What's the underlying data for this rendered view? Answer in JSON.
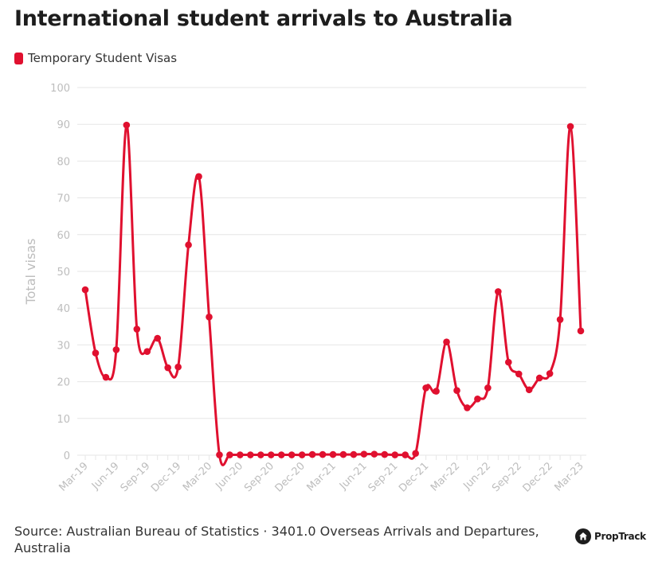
{
  "header": {
    "title": "International student arrivals to Australia"
  },
  "footer": {
    "source": "Source: Australian Bureau of Statistics · 3401.0 Overseas Arrivals and Departures, Australia",
    "brand": "PropTrack"
  },
  "colors": {
    "series": "#e0102f",
    "grid": "#e6e6e6",
    "axis_text": "#bdbdbd"
  },
  "chart_data": {
    "type": "line",
    "title": "International student arrivals to Australia",
    "xlabel": "",
    "ylabel": "Total visas",
    "ylim": [
      0,
      100
    ],
    "yticks": [
      0,
      10,
      20,
      30,
      40,
      50,
      60,
      70,
      80,
      90,
      100
    ],
    "legend_position": "top-left",
    "grid": true,
    "x": [
      "Mar-19",
      "Apr-19",
      "May-19",
      "Jun-19",
      "Jul-19",
      "Aug-19",
      "Sep-19",
      "Oct-19",
      "Nov-19",
      "Dec-19",
      "Jan-20",
      "Feb-20",
      "Mar-20",
      "Apr-20",
      "May-20",
      "Jun-20",
      "Jul-20",
      "Aug-20",
      "Sep-20",
      "Oct-20",
      "Nov-20",
      "Dec-20",
      "Jan-21",
      "Feb-21",
      "Mar-21",
      "Apr-21",
      "May-21",
      "Jun-21",
      "Jul-21",
      "Aug-21",
      "Sep-21",
      "Oct-21",
      "Nov-21",
      "Dec-21",
      "Jan-22",
      "Feb-22",
      "Mar-22",
      "Apr-22",
      "May-22",
      "Jun-22",
      "Jul-22",
      "Aug-22",
      "Sep-22",
      "Oct-22",
      "Nov-22",
      "Dec-22",
      "Jan-23",
      "Feb-23",
      "Mar-23"
    ],
    "x_tick_labels": [
      "Mar-19",
      "Jun-19",
      "Sep-19",
      "Dec-19",
      "Mar-20",
      "Jun-20",
      "Sep-20",
      "Dec-20",
      "Mar-21",
      "Jun-21",
      "Sep-21",
      "Dec-21",
      "Mar-22",
      "Jun-22",
      "Sep-22",
      "Dec-22",
      "Mar-23"
    ],
    "series": [
      {
        "name": "Temporary Student Visas",
        "values": [
          45,
          27.8,
          21.2,
          28.7,
          89.8,
          34.3,
          28.2,
          31.8,
          23.8,
          24,
          57.2,
          75.8,
          37.6,
          0.1,
          0.1,
          0.1,
          0.1,
          0.1,
          0.1,
          0.1,
          0.1,
          0.1,
          0.2,
          0.2,
          0.2,
          0.2,
          0.2,
          0.3,
          0.3,
          0.2,
          0.1,
          0.1,
          0.5,
          18.3,
          17.4,
          30.8,
          17.6,
          12.9,
          15.3,
          18.3,
          44.5,
          25.3,
          22.1,
          17.8,
          21,
          22.2,
          36.9,
          89.4,
          33.8
        ]
      }
    ]
  }
}
